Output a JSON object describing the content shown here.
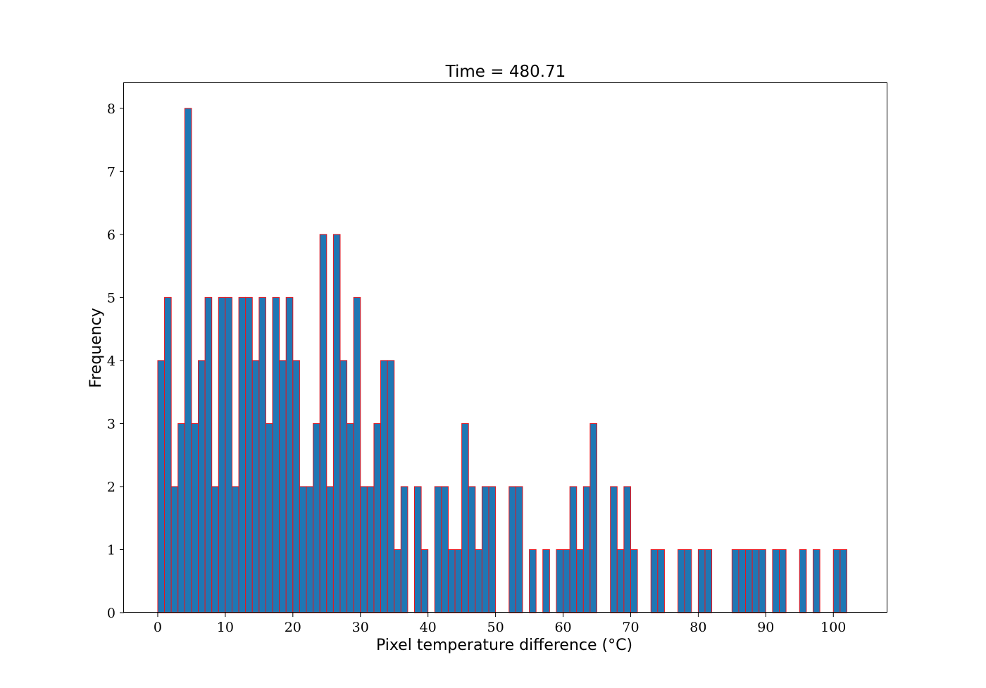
{
  "chart_data": {
    "type": "bar",
    "title": "Time = 480.71",
    "xlabel": "Pixel temperature difference (°C)",
    "ylabel": "Frequency",
    "xlim": [
      -5,
      108
    ],
    "ylim": [
      0,
      8.4
    ],
    "xticks": [
      0,
      10,
      20,
      30,
      40,
      50,
      60,
      70,
      80,
      90,
      100
    ],
    "yticks": [
      0,
      1,
      2,
      3,
      4,
      5,
      6,
      7,
      8
    ],
    "bin_width": 1.0,
    "x": [
      0,
      1,
      2,
      3,
      4,
      5,
      6,
      7,
      8,
      9,
      10,
      11,
      12,
      13,
      14,
      15,
      16,
      17,
      18,
      19,
      20,
      21,
      22,
      23,
      24,
      25,
      26,
      27,
      28,
      29,
      30,
      31,
      32,
      33,
      34,
      35,
      36,
      37,
      38,
      39,
      40,
      41,
      42,
      43,
      44,
      45,
      46,
      47,
      48,
      49,
      50,
      51,
      52,
      53,
      54,
      55,
      56,
      57,
      58,
      59,
      60,
      61,
      62,
      63,
      64,
      65,
      66,
      67,
      68,
      69,
      70,
      71,
      72,
      73,
      74,
      75,
      76,
      77,
      78,
      79,
      80,
      81,
      82,
      83,
      84,
      85,
      86,
      87,
      88,
      89,
      90,
      91,
      92,
      93,
      94,
      95,
      96,
      97,
      98,
      99,
      100,
      101
    ],
    "values": [
      4,
      5,
      2,
      3,
      8,
      3,
      4,
      5,
      2,
      5,
      5,
      2,
      5,
      5,
      4,
      5,
      3,
      5,
      4,
      5,
      4,
      2,
      2,
      3,
      6,
      2,
      6,
      4,
      3,
      5,
      2,
      2,
      3,
      4,
      4,
      1,
      2,
      0,
      2,
      1,
      0,
      2,
      2,
      1,
      1,
      3,
      2,
      1,
      2,
      2,
      0,
      0,
      2,
      2,
      0,
      1,
      0,
      1,
      0,
      1,
      1,
      2,
      1,
      2,
      3,
      0,
      0,
      2,
      1,
      2,
      1,
      0,
      0,
      1,
      1,
      0,
      0,
      1,
      1,
      0,
      1,
      1,
      0,
      0,
      0,
      1,
      1,
      1,
      1,
      1,
      0,
      1,
      1,
      0,
      0,
      1,
      0,
      1,
      0,
      0,
      1,
      1
    ],
    "grid": false,
    "bar_color": "#1f77b4",
    "edge_color": "#e8141c"
  }
}
